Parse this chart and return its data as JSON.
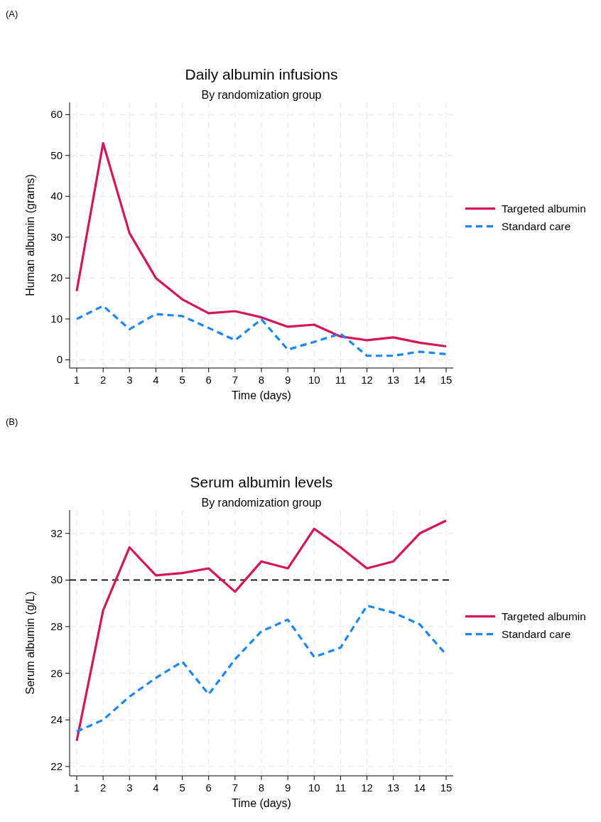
{
  "chart_data": [
    {
      "type": "line",
      "title": "Daily albumin infusions",
      "subtitle": "By randomization group",
      "xlabel": "Time (days)",
      "ylabel": "Human albumin (grams)",
      "annotations": [
        "(A)"
      ],
      "x": [
        1,
        2,
        3,
        4,
        5,
        6,
        7,
        8,
        9,
        10,
        11,
        12,
        13,
        14,
        15
      ],
      "xlim": [
        0.73,
        15.27
      ],
      "xticks": [
        1,
        2,
        3,
        4,
        5,
        6,
        7,
        8,
        9,
        10,
        11,
        12,
        13,
        14,
        15
      ],
      "ylim": [
        -2,
        63
      ],
      "yticks": [
        0,
        10,
        20,
        30,
        40,
        50,
        60
      ],
      "grid": true,
      "legend": "right",
      "series": [
        {
          "name": "Targeted albumin",
          "color": "#d5155a",
          "line_style": "solid",
          "values": [
            16.8,
            53,
            31,
            20,
            14.8,
            11.4,
            11.9,
            10.4,
            8.1,
            8.6,
            5.7,
            4.8,
            5.5,
            4.2,
            3.3
          ]
        },
        {
          "name": "Standard care",
          "color": "#1a87f7",
          "line_style": "dashed",
          "values": [
            10,
            13.2,
            7.5,
            11.2,
            10.7,
            7.8,
            4.8,
            9.9,
            2.5,
            4.4,
            6.4,
            1,
            1,
            2,
            1.4
          ]
        }
      ]
    },
    {
      "type": "line",
      "title": "Serum albumin levels",
      "subtitle": "By randomization group",
      "xlabel": "Time (days)",
      "ylabel": "Serum albumin (g/L)",
      "annotations": [
        "(B)"
      ],
      "x": [
        1,
        2,
        3,
        4,
        5,
        6,
        7,
        8,
        9,
        10,
        11,
        12,
        13,
        14,
        15
      ],
      "xlim": [
        0.73,
        15.27
      ],
      "xticks": [
        1,
        2,
        3,
        4,
        5,
        6,
        7,
        8,
        9,
        10,
        11,
        12,
        13,
        14,
        15
      ],
      "ylim": [
        21.6,
        33
      ],
      "yticks": [
        22,
        24,
        26,
        28,
        30,
        32
      ],
      "grid": true,
      "legend": "right",
      "ref_lines": [
        {
          "axis": "y",
          "value": 30,
          "color": "#000000",
          "line_style": "dashed"
        }
      ],
      "series": [
        {
          "name": "Targeted albumin",
          "color": "#d5155a",
          "line_style": "solid",
          "values": [
            23.1,
            28.7,
            31.4,
            30.2,
            30.3,
            30.5,
            29.5,
            30.8,
            30.5,
            32.2,
            31.4,
            30.5,
            30.8,
            32.0,
            32.55
          ]
        },
        {
          "name": "Standard care",
          "color": "#1a87f7",
          "line_style": "dashed",
          "values": [
            23.5,
            24.0,
            25.0,
            25.8,
            26.5,
            25.1,
            26.6,
            27.8,
            28.3,
            26.7,
            27.1,
            28.9,
            28.6,
            28.1,
            26.8
          ]
        }
      ]
    }
  ]
}
